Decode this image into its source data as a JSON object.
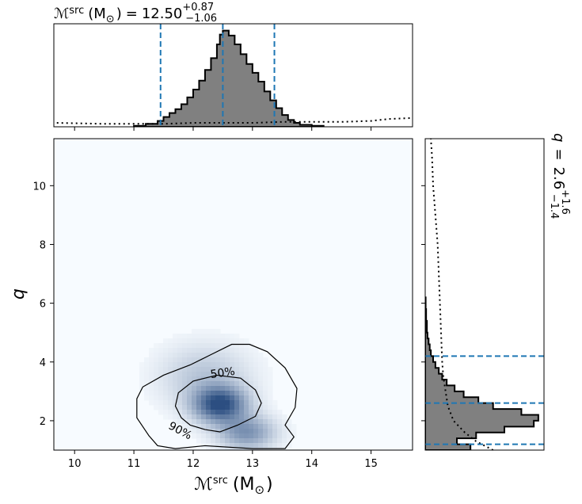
{
  "chart_data": [
    {
      "id": "mchirp_marginal",
      "type": "histogram",
      "title_parts": {
        "symbol": "ℳ",
        "sup": "src",
        "unit": "(M",
        "odot": "⊙",
        "close": ")",
        "eq": "=",
        "median": "12.50",
        "plus": "+0.87",
        "minus": "−1.06"
      },
      "xlim": [
        9.65,
        15.7
      ],
      "ylim": [
        0,
        1.05
      ],
      "bins_x": [
        11.0,
        11.2,
        11.4,
        11.5,
        11.6,
        11.7,
        11.8,
        11.9,
        12.0,
        12.1,
        12.2,
        12.3,
        12.4,
        12.45,
        12.5,
        12.6,
        12.7,
        12.8,
        12.9,
        13.0,
        13.1,
        13.2,
        13.3,
        13.4,
        13.5,
        13.6,
        13.7,
        13.8,
        14.0,
        14.2
      ],
      "hist_values": [
        0.01,
        0.03,
        0.06,
        0.1,
        0.14,
        0.18,
        0.23,
        0.3,
        0.38,
        0.47,
        0.58,
        0.7,
        0.84,
        0.94,
        0.98,
        0.93,
        0.84,
        0.74,
        0.64,
        0.55,
        0.46,
        0.36,
        0.27,
        0.19,
        0.12,
        0.07,
        0.04,
        0.02,
        0.01,
        0.0
      ],
      "hist_edge_right": 14.2,
      "prior_x": [
        9.7,
        10.5,
        11.0,
        11.5,
        12.0,
        12.5,
        13.0,
        13.5,
        14.0,
        14.5,
        15.0,
        15.3,
        15.7
      ],
      "prior_y": [
        0.04,
        0.03,
        0.03,
        0.03,
        0.04,
        0.04,
        0.04,
        0.05,
        0.05,
        0.05,
        0.06,
        0.08,
        0.09
      ],
      "quantile_lines": [
        11.45,
        12.5,
        13.37
      ],
      "colors": {
        "hist_fill": "#808080",
        "hist_edge": "#000000",
        "quantile": "#1f77b4"
      }
    },
    {
      "id": "joint_density",
      "type": "heatmap",
      "xlabel_parts": {
        "symbol": "ℳ",
        "sup": "src",
        "unit": "(M",
        "odot": "⊙",
        "close": ")"
      },
      "ylabel": "q",
      "xlim": [
        9.65,
        15.7
      ],
      "ylim": [
        1.0,
        11.6
      ],
      "x_ticks": [
        "10",
        "11",
        "12",
        "13",
        "14",
        "15"
      ],
      "y_ticks": [
        "2",
        "4",
        "6",
        "8",
        "10"
      ],
      "density_peak": {
        "x": 12.45,
        "y": 2.55
      },
      "contours": [
        {
          "label": "50%",
          "label_pos": [
            12.3,
            3.45
          ],
          "label_rot": -8,
          "path": [
            [
              11.8,
              2.1
            ],
            [
              11.7,
              2.5
            ],
            [
              11.75,
              2.95
            ],
            [
              12.0,
              3.35
            ],
            [
              12.4,
              3.55
            ],
            [
              12.8,
              3.45
            ],
            [
              13.05,
              3.05
            ],
            [
              13.15,
              2.6
            ],
            [
              13.05,
              2.15
            ],
            [
              12.75,
              1.85
            ],
            [
              12.45,
              1.62
            ],
            [
              12.2,
              1.7
            ],
            [
              11.95,
              1.85
            ],
            [
              11.8,
              2.1
            ]
          ]
        },
        {
          "label": "90%",
          "label_pos": [
            11.57,
            1.75
          ],
          "label_rot": 28,
          "path": [
            [
              11.25,
              1.5
            ],
            [
              11.05,
              2.1
            ],
            [
              11.05,
              2.75
            ],
            [
              11.15,
              3.15
            ],
            [
              11.5,
              3.55
            ],
            [
              11.95,
              3.9
            ],
            [
              12.3,
              4.25
            ],
            [
              12.65,
              4.6
            ],
            [
              12.95,
              4.6
            ],
            [
              13.25,
              4.35
            ],
            [
              13.55,
              3.8
            ],
            [
              13.75,
              3.1
            ],
            [
              13.72,
              2.45
            ],
            [
              13.55,
              1.85
            ],
            [
              13.7,
              1.45
            ],
            [
              13.55,
              1.05
            ],
            [
              13.0,
              1.05
            ],
            [
              12.2,
              1.15
            ],
            [
              11.7,
              1.05
            ],
            [
              11.4,
              1.15
            ],
            [
              11.25,
              1.5
            ]
          ]
        }
      ],
      "colors": {
        "low": "#f7fbff",
        "high": "#08306b",
        "contour": "#000000"
      }
    },
    {
      "id": "q_marginal",
      "type": "histogram",
      "orientation": "horizontal",
      "title_parts": {
        "symbol": "q",
        "eq": "=",
        "median": "2.6",
        "plus": "+1.6",
        "minus": "−1.4"
      },
      "ylim": [
        1.0,
        11.6
      ],
      "xlim": [
        0,
        1.05
      ],
      "bins_y": [
        1.0,
        1.2,
        1.4,
        1.6,
        1.8,
        2.0,
        2.2,
        2.4,
        2.6,
        2.8,
        3.0,
        3.2,
        3.4,
        3.6,
        3.8,
        4.0,
        4.2,
        4.4,
        4.6,
        4.8,
        5.0,
        5.4,
        5.8,
        6.2
      ],
      "hist_values": [
        0.4,
        0.28,
        0.45,
        0.7,
        0.96,
        1.0,
        0.85,
        0.6,
        0.47,
        0.34,
        0.26,
        0.19,
        0.15,
        0.12,
        0.09,
        0.07,
        0.05,
        0.04,
        0.03,
        0.02,
        0.015,
        0.008,
        0.004,
        0.0
      ],
      "hist_edge_top": 6.2,
      "prior_y": [
        1.0,
        1.3,
        1.6,
        2.0,
        2.5,
        3.0,
        3.5,
        4.0,
        5.0,
        6.0,
        7.0,
        8.0,
        9.0,
        10.0,
        11.0,
        11.6
      ],
      "prior_x": [
        0.6,
        0.45,
        0.35,
        0.25,
        0.2,
        0.18,
        0.16,
        0.15,
        0.14,
        0.13,
        0.12,
        0.11,
        0.09,
        0.07,
        0.06,
        0.05
      ],
      "quantile_lines": [
        1.2,
        2.6,
        4.2
      ],
      "colors": {
        "hist_fill": "#808080",
        "hist_edge": "#000000",
        "quantile": "#1f77b4"
      }
    }
  ]
}
